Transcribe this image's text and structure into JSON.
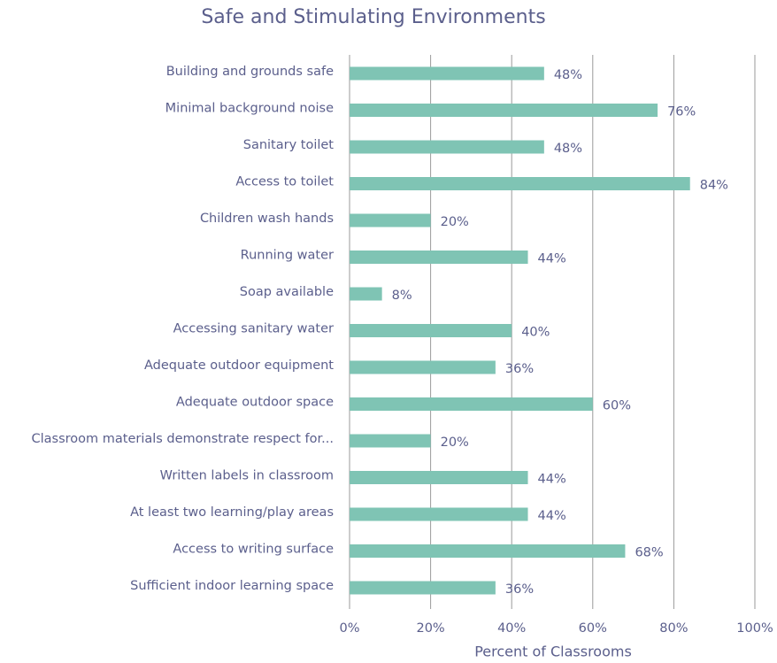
{
  "chart_data": {
    "type": "bar",
    "orientation": "horizontal",
    "title": "Safe and Stimulating Environments",
    "x_label": "Percent of Classrooms",
    "categories": [
      "Building and grounds safe",
      "Minimal background noise",
      "Sanitary toilet",
      "Access to toilet",
      "Children wash hands",
      "Running water",
      "Soap available",
      "Accessing sanitary water",
      "Adequate outdoor equipment",
      "Adequate outdoor space",
      "Classroom materials demonstrate respect for...",
      "Written labels in classroom",
      "At least two learning/play areas",
      "Access to writing surface",
      "Sufficient indoor learning space"
    ],
    "values": [
      48,
      76,
      48,
      84,
      20,
      44,
      8,
      40,
      36,
      60,
      20,
      44,
      44,
      68,
      36
    ],
    "value_labels": [
      "48%",
      "76%",
      "48%",
      "84%",
      "20%",
      "44%",
      "8%",
      "40%",
      "36%",
      "60%",
      "20%",
      "44%",
      "44%",
      "68%",
      "36%"
    ],
    "color": "#7fc4b4",
    "xlim": [
      0,
      100
    ],
    "xticks": [
      {
        "value": 0,
        "label": "0%"
      },
      {
        "value": 20,
        "label": "20%"
      },
      {
        "value": 40,
        "label": "40%"
      },
      {
        "value": 60,
        "label": "60%"
      },
      {
        "value": 80,
        "label": "80%"
      },
      {
        "value": 100,
        "label": "100%"
      }
    ],
    "grid": true
  }
}
